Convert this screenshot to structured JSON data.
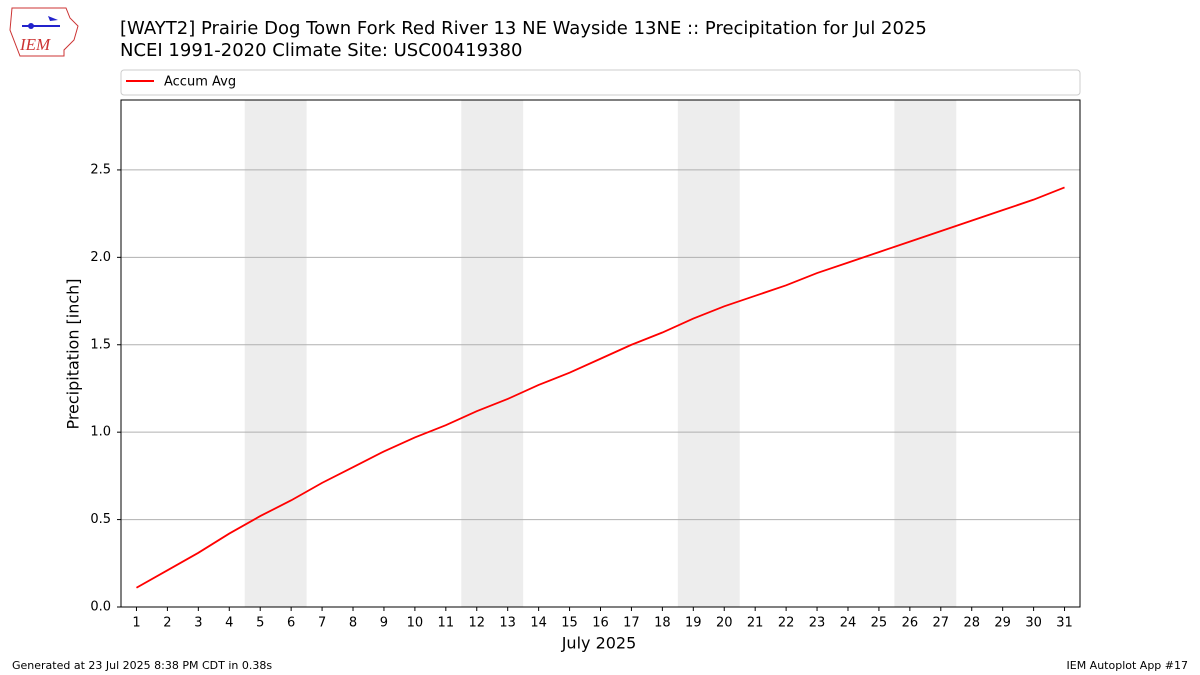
{
  "logo_text": "IEM",
  "footer": {
    "left": "Generated at 23 Jul 2025 8:38 PM CDT in 0.38s",
    "right": "IEM Autoplot App #17"
  },
  "chart_data": {
    "type": "line",
    "title": "[WAYT2] Prairie Dog Town Fork Red River 13 NE Wayside 13NE :: Precipitation for Jul 2025",
    "subtitle": "NCEI 1991-2020 Climate Site: USC00419380",
    "x_label": "July 2025",
    "y_label": "Precipitation [inch]",
    "x": [
      1,
      2,
      3,
      4,
      5,
      6,
      7,
      8,
      9,
      10,
      11,
      12,
      13,
      14,
      15,
      16,
      17,
      18,
      19,
      20,
      21,
      22,
      23,
      24,
      25,
      26,
      27,
      28,
      29,
      30,
      31
    ],
    "series": [
      {
        "name": "Accum Avg",
        "color": "#ff0000",
        "values": [
          0.11,
          0.21,
          0.31,
          0.42,
          0.52,
          0.61,
          0.71,
          0.8,
          0.89,
          0.97,
          1.04,
          1.12,
          1.19,
          1.27,
          1.34,
          1.42,
          1.5,
          1.57,
          1.65,
          1.72,
          1.78,
          1.84,
          1.91,
          1.97,
          2.03,
          2.09,
          2.15,
          2.21,
          2.27,
          2.33,
          2.4
        ]
      }
    ],
    "weekend_bands": [
      [
        4.5,
        6.5
      ],
      [
        11.5,
        13.5
      ],
      [
        18.5,
        20.5
      ],
      [
        25.5,
        27.5
      ]
    ],
    "band_color": "#ededed",
    "xlim": [
      0.5,
      31.5
    ],
    "ylim": [
      0,
      2.9
    ],
    "xticks": [
      1,
      2,
      3,
      4,
      5,
      6,
      7,
      8,
      9,
      10,
      11,
      12,
      13,
      14,
      15,
      16,
      17,
      18,
      19,
      20,
      21,
      22,
      23,
      24,
      25,
      26,
      27,
      28,
      29,
      30,
      31
    ],
    "yticks": [
      {
        "value": 0,
        "label": "0.0"
      },
      0.5,
      {
        "value": 1,
        "label": "1.0"
      },
      1.5,
      {
        "value": 2,
        "label": "2.0"
      },
      2.5
    ],
    "grid": "y",
    "legend": "top"
  }
}
